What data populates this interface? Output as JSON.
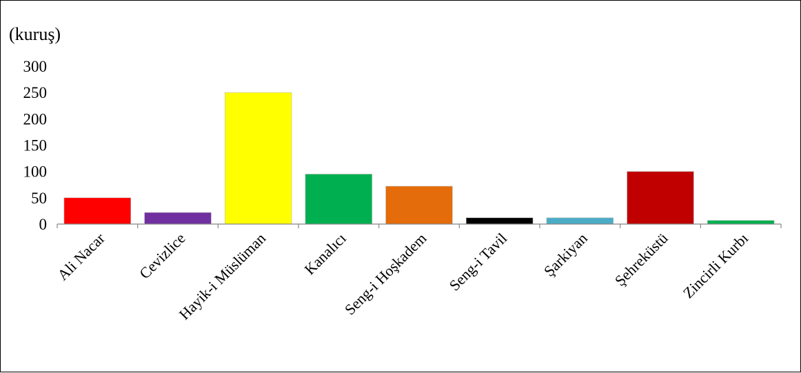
{
  "chart_data": {
    "type": "bar",
    "title": "",
    "xlabel": "",
    "ylabel": "(kuruş)",
    "ylim": [
      0,
      300
    ],
    "yticks": [
      0,
      50,
      100,
      150,
      200,
      250,
      300
    ],
    "grid": false,
    "legend": "none",
    "categories": [
      "Ali Nacar",
      "Cevizlice",
      "Hayik-i Müslüman",
      "Kanalıcı",
      "Seng-i Hoşkadem",
      "Seng-i Tavil",
      "Şarkiyan",
      "Şehreküstü",
      "Zincirli Kurbı"
    ],
    "values": [
      50,
      22,
      250,
      95,
      72,
      12,
      12,
      100,
      7
    ],
    "colors": [
      "#ff0000",
      "#7030a0",
      "#ffff00",
      "#00b050",
      "#e46c0a",
      "#000000",
      "#4bacc6",
      "#c00000",
      "#00b050"
    ]
  }
}
